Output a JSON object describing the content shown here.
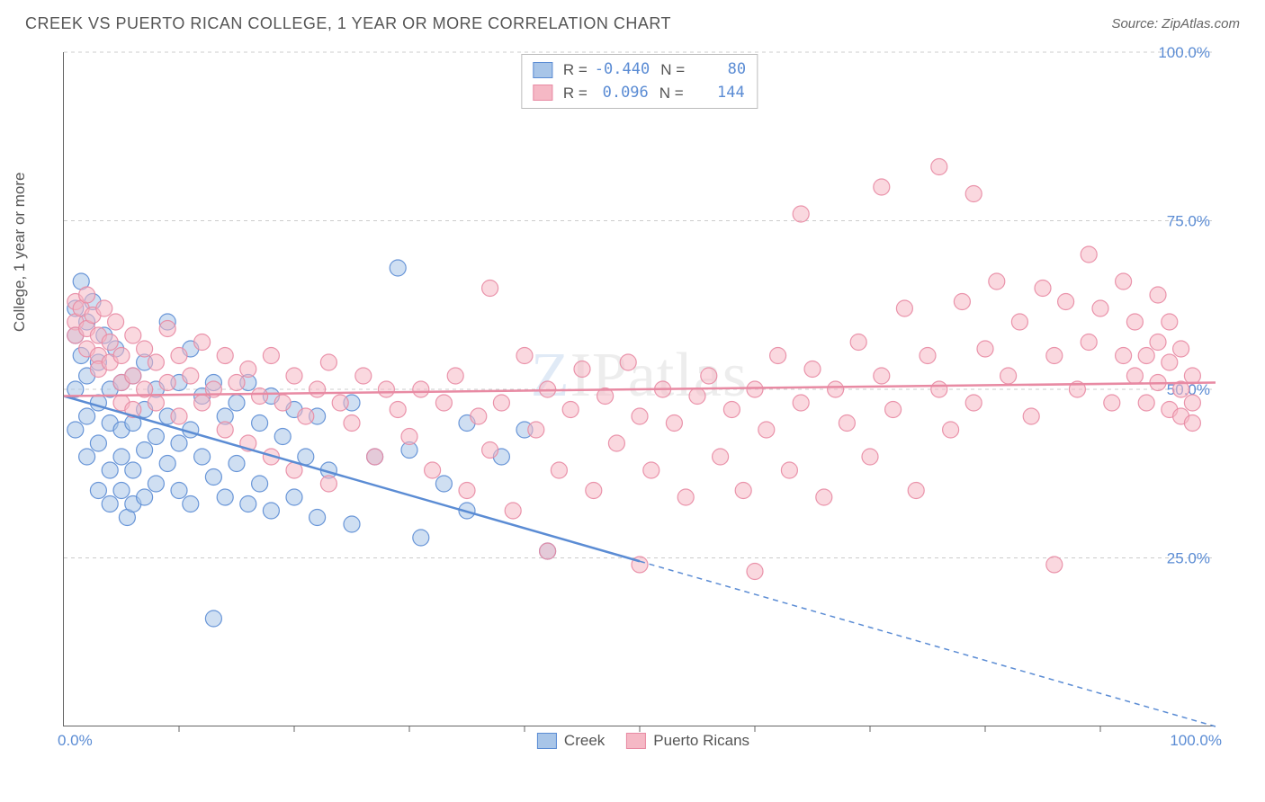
{
  "title": "CREEK VS PUERTO RICAN COLLEGE, 1 YEAR OR MORE CORRELATION CHART",
  "source": "Source: ZipAtlas.com",
  "y_axis_label": "College, 1 year or more",
  "watermark": {
    "z": "Z",
    "ip": "IP",
    "atlas": "atlas"
  },
  "chart": {
    "type": "scatter",
    "xlim": [
      0,
      100
    ],
    "ylim": [
      0,
      100
    ],
    "x_tick_labels": {
      "min": "0.0%",
      "max": "100.0%"
    },
    "y_ticks": [
      25,
      50,
      75,
      100
    ],
    "y_tick_labels": [
      "25.0%",
      "50.0%",
      "75.0%",
      "100.0%"
    ],
    "x_minor_ticks": [
      10,
      20,
      30,
      40,
      50,
      60,
      70,
      80,
      90
    ],
    "background_color": "#ffffff",
    "grid_color": "#cccccc",
    "axis_color": "#666666",
    "marker_radius": 9,
    "marker_opacity": 0.55,
    "series": [
      {
        "name": "Creek",
        "fill": "#a8c5e8",
        "stroke": "#5b8cd4",
        "R": "-0.440",
        "N": "80",
        "trend": {
          "y_at_x0": 49,
          "y_at_x100": 0,
          "solid_until_x": 50
        },
        "points": [
          [
            1,
            62
          ],
          [
            1,
            58
          ],
          [
            1,
            50
          ],
          [
            1,
            44
          ],
          [
            1.5,
            66
          ],
          [
            1.5,
            55
          ],
          [
            2,
            60
          ],
          [
            2,
            52
          ],
          [
            2,
            46
          ],
          [
            2,
            40
          ],
          [
            2.5,
            63
          ],
          [
            3,
            54
          ],
          [
            3,
            48
          ],
          [
            3,
            42
          ],
          [
            3,
            35
          ],
          [
            3.5,
            58
          ],
          [
            4,
            50
          ],
          [
            4,
            45
          ],
          [
            4,
            38
          ],
          [
            4,
            33
          ],
          [
            4.5,
            56
          ],
          [
            5,
            51
          ],
          [
            5,
            44
          ],
          [
            5,
            40
          ],
          [
            5,
            35
          ],
          [
            5.5,
            31
          ],
          [
            6,
            52
          ],
          [
            6,
            45
          ],
          [
            6,
            38
          ],
          [
            6,
            33
          ],
          [
            7,
            54
          ],
          [
            7,
            47
          ],
          [
            7,
            41
          ],
          [
            7,
            34
          ],
          [
            8,
            50
          ],
          [
            8,
            43
          ],
          [
            8,
            36
          ],
          [
            9,
            60
          ],
          [
            9,
            46
          ],
          [
            9,
            39
          ],
          [
            10,
            51
          ],
          [
            10,
            42
          ],
          [
            10,
            35
          ],
          [
            11,
            56
          ],
          [
            11,
            44
          ],
          [
            11,
            33
          ],
          [
            12,
            49
          ],
          [
            12,
            40
          ],
          [
            13,
            51
          ],
          [
            13,
            37
          ],
          [
            13,
            16
          ],
          [
            14,
            46
          ],
          [
            14,
            34
          ],
          [
            15,
            48
          ],
          [
            15,
            39
          ],
          [
            16,
            51
          ],
          [
            16,
            33
          ],
          [
            17,
            45
          ],
          [
            17,
            36
          ],
          [
            18,
            49
          ],
          [
            18,
            32
          ],
          [
            19,
            43
          ],
          [
            20,
            47
          ],
          [
            20,
            34
          ],
          [
            21,
            40
          ],
          [
            22,
            46
          ],
          [
            22,
            31
          ],
          [
            23,
            38
          ],
          [
            25,
            48
          ],
          [
            25,
            30
          ],
          [
            27,
            40
          ],
          [
            29,
            68
          ],
          [
            30,
            41
          ],
          [
            31,
            28
          ],
          [
            33,
            36
          ],
          [
            35,
            45
          ],
          [
            35,
            32
          ],
          [
            38,
            40
          ],
          [
            40,
            44
          ],
          [
            42,
            26
          ]
        ]
      },
      {
        "name": "Puerto Ricans",
        "fill": "#f5b8c5",
        "stroke": "#e88aa3",
        "R": "0.096",
        "N": "144",
        "trend": {
          "y_at_x0": 49,
          "y_at_x100": 51,
          "solid_until_x": 100
        },
        "points": [
          [
            1,
            63
          ],
          [
            1,
            60
          ],
          [
            1,
            58
          ],
          [
            1.5,
            62
          ],
          [
            2,
            64
          ],
          [
            2,
            59
          ],
          [
            2,
            56
          ],
          [
            2.5,
            61
          ],
          [
            3,
            58
          ],
          [
            3,
            55
          ],
          [
            3,
            53
          ],
          [
            3.5,
            62
          ],
          [
            4,
            57
          ],
          [
            4,
            54
          ],
          [
            4.5,
            60
          ],
          [
            5,
            55
          ],
          [
            5,
            51
          ],
          [
            5,
            48
          ],
          [
            6,
            58
          ],
          [
            6,
            52
          ],
          [
            6,
            47
          ],
          [
            7,
            56
          ],
          [
            7,
            50
          ],
          [
            8,
            54
          ],
          [
            8,
            48
          ],
          [
            9,
            59
          ],
          [
            9,
            51
          ],
          [
            10,
            55
          ],
          [
            10,
            46
          ],
          [
            11,
            52
          ],
          [
            12,
            57
          ],
          [
            12,
            48
          ],
          [
            13,
            50
          ],
          [
            14,
            55
          ],
          [
            14,
            44
          ],
          [
            15,
            51
          ],
          [
            16,
            53
          ],
          [
            16,
            42
          ],
          [
            17,
            49
          ],
          [
            18,
            55
          ],
          [
            18,
            40
          ],
          [
            19,
            48
          ],
          [
            20,
            52
          ],
          [
            20,
            38
          ],
          [
            21,
            46
          ],
          [
            22,
            50
          ],
          [
            23,
            54
          ],
          [
            23,
            36
          ],
          [
            24,
            48
          ],
          [
            25,
            45
          ],
          [
            26,
            52
          ],
          [
            27,
            40
          ],
          [
            28,
            50
          ],
          [
            29,
            47
          ],
          [
            30,
            43
          ],
          [
            31,
            50
          ],
          [
            32,
            38
          ],
          [
            33,
            48
          ],
          [
            34,
            52
          ],
          [
            35,
            35
          ],
          [
            36,
            46
          ],
          [
            37,
            65
          ],
          [
            37,
            41
          ],
          [
            38,
            48
          ],
          [
            39,
            32
          ],
          [
            40,
            55
          ],
          [
            41,
            44
          ],
          [
            42,
            50
          ],
          [
            42,
            26
          ],
          [
            43,
            38
          ],
          [
            44,
            47
          ],
          [
            45,
            53
          ],
          [
            46,
            35
          ],
          [
            47,
            49
          ],
          [
            48,
            42
          ],
          [
            49,
            54
          ],
          [
            50,
            24
          ],
          [
            50,
            46
          ],
          [
            51,
            38
          ],
          [
            52,
            50
          ],
          [
            53,
            45
          ],
          [
            54,
            34
          ],
          [
            55,
            49
          ],
          [
            56,
            52
          ],
          [
            57,
            40
          ],
          [
            58,
            47
          ],
          [
            59,
            35
          ],
          [
            60,
            50
          ],
          [
            60,
            23
          ],
          [
            61,
            44
          ],
          [
            62,
            55
          ],
          [
            63,
            38
          ],
          [
            64,
            76
          ],
          [
            64,
            48
          ],
          [
            65,
            53
          ],
          [
            66,
            34
          ],
          [
            67,
            50
          ],
          [
            68,
            45
          ],
          [
            69,
            57
          ],
          [
            70,
            40
          ],
          [
            71,
            80
          ],
          [
            71,
            52
          ],
          [
            72,
            47
          ],
          [
            73,
            62
          ],
          [
            74,
            35
          ],
          [
            75,
            55
          ],
          [
            76,
            83
          ],
          [
            76,
            50
          ],
          [
            77,
            44
          ],
          [
            78,
            63
          ],
          [
            79,
            79
          ],
          [
            79,
            48
          ],
          [
            80,
            56
          ],
          [
            81,
            66
          ],
          [
            82,
            52
          ],
          [
            83,
            60
          ],
          [
            84,
            46
          ],
          [
            85,
            65
          ],
          [
            86,
            55
          ],
          [
            86,
            24
          ],
          [
            87,
            63
          ],
          [
            88,
            50
          ],
          [
            89,
            70
          ],
          [
            89,
            57
          ],
          [
            90,
            62
          ],
          [
            91,
            48
          ],
          [
            92,
            55
          ],
          [
            92,
            66
          ],
          [
            93,
            52
          ],
          [
            93,
            60
          ],
          [
            94,
            55
          ],
          [
            94,
            48
          ],
          [
            95,
            64
          ],
          [
            95,
            51
          ],
          [
            95,
            57
          ],
          [
            96,
            54
          ],
          [
            96,
            47
          ],
          [
            96,
            60
          ],
          [
            97,
            50
          ],
          [
            97,
            56
          ],
          [
            97,
            46
          ],
          [
            98,
            52
          ],
          [
            98,
            48
          ],
          [
            98,
            45
          ]
        ]
      }
    ]
  },
  "legend_bottom": [
    {
      "label": "Creek",
      "fill": "#a8c5e8",
      "stroke": "#5b8cd4"
    },
    {
      "label": "Puerto Ricans",
      "fill": "#f5b8c5",
      "stroke": "#e88aa3"
    }
  ]
}
